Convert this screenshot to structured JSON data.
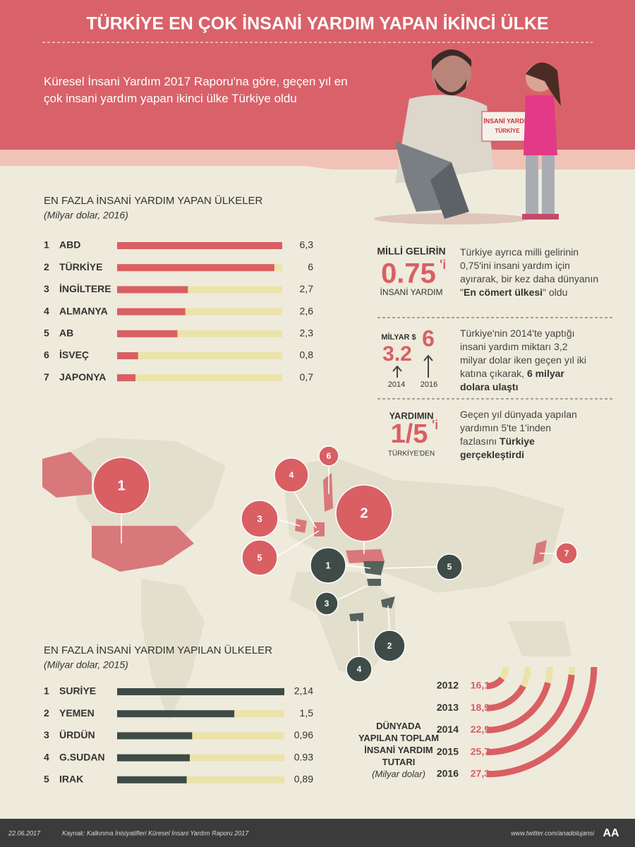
{
  "header": {
    "title": "TÜRKİYE EN ÇOK İNSANİ YARDIM YAPAN İKİNCİ ÜLKE",
    "subtitle": "Küresel İnsani Yardım 2017 Raporu'na göre, geçen yıl en çok insani yardım yapan ikinci ülke Türkiye oldu",
    "box_text": [
      "İNSANİ YARDIM",
      "TÜRKİYE"
    ]
  },
  "chart_data": [
    {
      "type": "bar",
      "title": "EN FAZLA İNSANİ YARDIM YAPAN ÜLKELER",
      "subtitle": "(Milyar dolar, 2016)",
      "ranks": [
        "1",
        "2",
        "3",
        "4",
        "5",
        "6",
        "7"
      ],
      "categories": [
        "ABD",
        "TÜRKİYE",
        "İNGİLTERE",
        "ALMANYA",
        "AB",
        "İSVEÇ",
        "JAPONYA"
      ],
      "values": [
        6.3,
        6,
        2.7,
        2.6,
        2.3,
        0.8,
        0.7
      ],
      "value_labels": [
        "6,3",
        "6",
        "2,7",
        "2,6",
        "2,3",
        "0,8",
        "0,7"
      ],
      "xlim": [
        0,
        6.3
      ],
      "color": "#d95f63",
      "track_color": "#ebe3aa"
    },
    {
      "type": "bar",
      "title": "EN FAZLA İNSANİ YARDIM YAPILAN ÜLKELER",
      "subtitle": "(Milyar dolar, 2015)",
      "ranks": [
        "1",
        "2",
        "3",
        "4",
        "5"
      ],
      "categories": [
        "SURİYE",
        "YEMEN",
        "ÜRDÜN",
        "G.SUDAN",
        "IRAK"
      ],
      "values": [
        2.14,
        1.5,
        0.96,
        0.93,
        0.89
      ],
      "value_labels": [
        "2,14",
        "1,5",
        "0,96",
        "0.93",
        "0,89"
      ],
      "xlim": [
        0,
        2.14
      ],
      "color": "#3e4b47",
      "track_color": "#ebe3aa"
    },
    {
      "type": "arc",
      "title": "DÜNYADA YAPILAN TOPLAM İNSANİ YARDIM TUTARI",
      "subtitle": "(Milyar dolar)",
      "categories": [
        "2012",
        "2013",
        "2014",
        "2015",
        "2016"
      ],
      "values": [
        16.1,
        18.9,
        22.9,
        25.7,
        27.3
      ],
      "value_labels": [
        "16,1",
        "18,9",
        "22,9",
        "25,7",
        "27,3"
      ],
      "color": "#d95f63",
      "track_color": "#ebe3aa"
    }
  ],
  "stats": [
    {
      "top": "MİLLİ GELİRİN",
      "big": "0.75",
      "sup": "'i",
      "bottom": "İNSANİ YARDIM",
      "text": [
        "Türkiye ayrıca milli gelirinin 0,75'ini insani yardım için ayırarak, bir kez daha dünyanın \"",
        "En cömert ülkesi",
        "\" oldu"
      ]
    },
    {
      "unit": "MİLYAR $",
      "big_a": "3.2",
      "big_b": "6",
      "year_a": "2014",
      "year_b": "2016",
      "text": [
        "Türkiye'nin 2014'te yaptığı insani yardım miktarı 3,2 milyar dolar iken geçen yıl iki katına çıkarak, ",
        "6 milyar dolara ulaştı"
      ]
    },
    {
      "top": "YARDIMIN",
      "big": "1/5",
      "sup": "'i",
      "bottom": "TÜRKİYE'DEN",
      "text": [
        "Geçen yıl dünyada yapılan yardımın 5'te 1'inden fazlasını ",
        "Türkiye gerçekleştirdi"
      ]
    }
  ],
  "map": {
    "donors": [
      "1",
      "2",
      "3",
      "4",
      "5",
      "6",
      "7"
    ],
    "recipients": [
      "1",
      "2",
      "3",
      "4",
      "5"
    ]
  },
  "footer": {
    "date": "22.06.2017",
    "source": "Kaynak: Kalkınma İnisiyatifleri Küresel İnsani Yardım Raporu 2017",
    "twitter": "www.twitter.com/anadolujansi",
    "logo": "AA"
  }
}
